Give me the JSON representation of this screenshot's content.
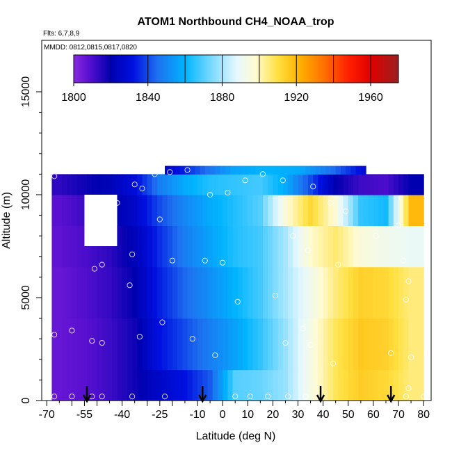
{
  "chart_data": {
    "type": "heatmap",
    "title": "ATOM1 Northbound CH4_NOAA_trop",
    "subtitle_flights": "Flts: 6,7,8,9",
    "subtitle_dates": "MMDD: 0812,0815,0817,0820",
    "xlabel": "Latitude (deg N)",
    "ylabel": "Altitude (m)",
    "x_tick_labels": [
      "-70",
      "-55",
      "-40",
      "-25",
      "-10",
      "0",
      "10",
      "20",
      "30",
      "40",
      "50",
      "60",
      "70",
      "80"
    ],
    "x_tick_values": [
      -70,
      -55,
      -40,
      -25,
      -10,
      0,
      10,
      20,
      30,
      40,
      50,
      60,
      70,
      80
    ],
    "y_tick_labels": [
      "0",
      "5000",
      "10000",
      "15000"
    ],
    "y_tick_values": [
      0,
      5000,
      10000,
      15000
    ],
    "ylim": [
      0,
      17500
    ],
    "colorbar": {
      "min": 1800,
      "max": 1975,
      "tick_labels": [
        "1800",
        "1840",
        "1880",
        "1920",
        "1960"
      ],
      "tick_values": [
        1800,
        1840,
        1880,
        1920,
        1960
      ],
      "gradient_stops": [
        {
          "value": 1800,
          "color": "#8a2be2"
        },
        {
          "value": 1808,
          "color": "#5a10d0"
        },
        {
          "value": 1820,
          "color": "#0000b0"
        },
        {
          "value": 1832,
          "color": "#0010e0"
        },
        {
          "value": 1845,
          "color": "#1e70f0"
        },
        {
          "value": 1860,
          "color": "#00b4ff"
        },
        {
          "value": 1875,
          "color": "#80dcff"
        },
        {
          "value": 1888,
          "color": "#e6f8ff"
        },
        {
          "value": 1898,
          "color": "#fffbd0"
        },
        {
          "value": 1910,
          "color": "#ffe040"
        },
        {
          "value": 1922,
          "color": "#ffb000"
        },
        {
          "value": 1935,
          "color": "#ff7000"
        },
        {
          "value": 1948,
          "color": "#ff2000"
        },
        {
          "value": 1960,
          "color": "#e00000"
        },
        {
          "value": 1975,
          "color": "#9a2020"
        }
      ]
    },
    "bands": [
      {
        "alt0": 0,
        "alt1": 1500,
        "values": [
          1806,
          1808,
          1812,
          1818,
          1826,
          1832,
          1842,
          1870,
          1872,
          1878,
          1894,
          1908,
          1915,
          1912,
          1905
        ]
      },
      {
        "alt0": 1500,
        "alt1": 4000,
        "values": [
          1806,
          1808,
          1812,
          1818,
          1832,
          1840,
          1848,
          1856,
          1866,
          1878,
          1894,
          1908,
          1916,
          1914,
          1905
        ]
      },
      {
        "alt0": 4000,
        "alt1": 6500,
        "values": [
          1806,
          1809,
          1813,
          1820,
          1834,
          1844,
          1852,
          1860,
          1868,
          1880,
          1892,
          1905,
          1914,
          1912,
          1905
        ]
      },
      {
        "alt0": 6500,
        "alt1": 8500,
        "values": [
          1807,
          1810,
          1814,
          1822,
          1836,
          1848,
          1856,
          1864,
          1868,
          1880,
          1898,
          1906,
          1896,
          1892,
          1890
        ]
      },
      {
        "alt0": 8500,
        "alt1": 10000,
        "values": [
          1808,
          1812,
          1818,
          1826,
          1840,
          1850,
          1858,
          1864,
          1870,
          1896,
          1912,
          1896,
          1866,
          1862,
          1920
        ]
      },
      {
        "alt0": 10000,
        "alt1": 11000,
        "values": [
          1814,
          1818,
          1822,
          1830,
          1848,
          1858,
          1864,
          1866,
          1868,
          1858,
          1840,
          1820,
          1812,
          1810,
          1820
        ]
      }
    ],
    "band_lat_centers": [
      -65,
      -55,
      -45,
      -35,
      -25,
      -15,
      -5,
      5,
      15,
      25,
      35,
      45,
      55,
      65,
      75
    ],
    "top_strip": {
      "alt0": 11000,
      "alt1": 11400,
      "lat0": -23,
      "lat1": 57,
      "values": [
        1826,
        1842,
        1856,
        1860,
        1858,
        1846,
        1830
      ]
    },
    "blank_region": {
      "lat0": -55,
      "lat1": -42,
      "alt0": 7500,
      "alt1": 10000
    },
    "domain": {
      "lat0": -68,
      "lat1": 80,
      "alt0": 0,
      "alt1": 11000
    },
    "sample_points": [
      {
        "lat": -67,
        "alt": 10900
      },
      {
        "lat": -42,
        "alt": 9600
      },
      {
        "lat": -35,
        "alt": 10500
      },
      {
        "lat": -32,
        "alt": 10300
      },
      {
        "lat": -27,
        "alt": 11000
      },
      {
        "lat": -21,
        "alt": 11100
      },
      {
        "lat": -14,
        "alt": 11200
      },
      {
        "lat": -5,
        "alt": 10000
      },
      {
        "lat": 2,
        "alt": 10100
      },
      {
        "lat": 9,
        "alt": 10700
      },
      {
        "lat": 16,
        "alt": 11000
      },
      {
        "lat": 24,
        "alt": 10700
      },
      {
        "lat": 36,
        "alt": 10400
      },
      {
        "lat": 43,
        "alt": 9600
      },
      {
        "lat": 49,
        "alt": 9200
      },
      {
        "lat": 61,
        "alt": 8000
      },
      {
        "lat": 70,
        "alt": 8500
      },
      {
        "lat": -25,
        "alt": 8800
      },
      {
        "lat": 28,
        "alt": 8000
      },
      {
        "lat": 34,
        "alt": 7300
      },
      {
        "lat": -36,
        "alt": 7100
      },
      {
        "lat": -20,
        "alt": 6800
      },
      {
        "lat": -7,
        "alt": 6800
      },
      {
        "lat": 0,
        "alt": 6700
      },
      {
        "lat": -48,
        "alt": 6600
      },
      {
        "lat": -51,
        "alt": 6400
      },
      {
        "lat": 46,
        "alt": 6600
      },
      {
        "lat": 72,
        "alt": 6800
      },
      {
        "lat": -37,
        "alt": 5600
      },
      {
        "lat": 74,
        "alt": 5800
      },
      {
        "lat": 73,
        "alt": 4900
      },
      {
        "lat": 21,
        "alt": 5100
      },
      {
        "lat": 6,
        "alt": 4800
      },
      {
        "lat": -24,
        "alt": 3800
      },
      {
        "lat": -60,
        "alt": 3400
      },
      {
        "lat": -67,
        "alt": 3200
      },
      {
        "lat": -33,
        "alt": 3100
      },
      {
        "lat": 32,
        "alt": 3500
      },
      {
        "lat": -52,
        "alt": 2900
      },
      {
        "lat": -48,
        "alt": 2800
      },
      {
        "lat": -12,
        "alt": 3000
      },
      {
        "lat": 25,
        "alt": 2800
      },
      {
        "lat": 35,
        "alt": 2700
      },
      {
        "lat": -3,
        "alt": 2200
      },
      {
        "lat": 67,
        "alt": 2300
      },
      {
        "lat": 75,
        "alt": 2100
      },
      {
        "lat": 44,
        "alt": 1800
      },
      {
        "lat": 74,
        "alt": 600
      },
      {
        "lat": -67,
        "alt": 200
      },
      {
        "lat": -60,
        "alt": 200
      },
      {
        "lat": -52,
        "alt": 200
      },
      {
        "lat": -48,
        "alt": 200
      },
      {
        "lat": -36,
        "alt": 200
      },
      {
        "lat": -23,
        "alt": 200
      },
      {
        "lat": 5,
        "alt": 200
      },
      {
        "lat": 11,
        "alt": 200
      },
      {
        "lat": 18,
        "alt": 200
      },
      {
        "lat": 26,
        "alt": 200
      },
      {
        "lat": 33,
        "alt": 200
      },
      {
        "lat": 73,
        "alt": 200
      },
      {
        "lat": 80,
        "alt": 200
      }
    ],
    "arrow_latitudes": [
      -54,
      -8,
      39,
      67
    ]
  }
}
